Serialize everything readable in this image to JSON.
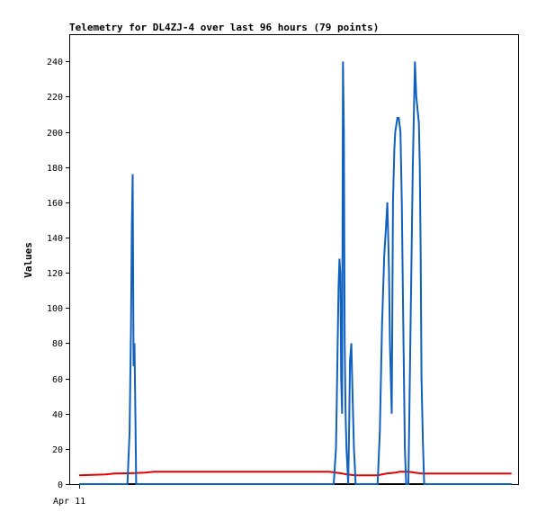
{
  "chart_data": {
    "type": "line",
    "title": "Telemetry for DL4ZJ-4 over last 96 hours (79 points)",
    "ylabel": "Values",
    "xlabel": "",
    "x_tick_labels": [
      "Apr 11"
    ],
    "ylim": [
      0,
      255
    ],
    "xlim": [
      0,
      1
    ],
    "yticks": [
      0,
      20,
      40,
      60,
      80,
      100,
      120,
      140,
      160,
      180,
      200,
      220,
      240
    ],
    "grid": false,
    "legend": "none",
    "series": [
      {
        "color": "#000000",
        "x": [
          0.0,
          0.985
        ],
        "y": [
          0,
          0
        ]
      },
      {
        "color": "#e00000",
        "x": [
          0.0,
          0.06,
          0.08,
          0.12,
          0.15,
          0.17,
          0.2,
          0.3,
          0.45,
          0.57,
          0.6,
          0.61,
          0.63,
          0.68,
          0.7,
          0.72,
          0.73,
          0.75,
          0.78,
          0.85,
          0.9,
          0.985
        ],
        "y": [
          5,
          5.5,
          6,
          6.2,
          6.5,
          7,
          7,
          7,
          7,
          7,
          6,
          5.5,
          5,
          5,
          6,
          6.5,
          7,
          7,
          6,
          6,
          6,
          6
        ]
      },
      {
        "color": "#1060c0",
        "x": [
          0.0,
          0.11,
          0.115,
          0.118,
          0.12,
          0.122,
          0.124,
          0.126,
          0.128,
          0.13,
          0.132,
          0.134,
          0.136,
          0.138,
          0.14,
          0.145,
          0.58,
          0.585,
          0.587,
          0.589,
          0.591,
          0.593,
          0.595,
          0.597,
          0.599,
          0.601,
          0.603,
          0.605,
          0.607,
          0.609,
          0.611,
          0.613,
          0.615,
          0.617,
          0.62,
          0.622,
          0.624,
          0.626,
          0.628,
          0.63,
          0.632,
          0.634,
          0.636,
          0.64,
          0.68,
          0.685,
          0.69,
          0.695,
          0.7,
          0.702,
          0.704,
          0.706,
          0.708,
          0.712,
          0.715,
          0.718,
          0.72,
          0.725,
          0.728,
          0.732,
          0.735,
          0.738,
          0.74,
          0.742,
          0.745,
          0.75,
          0.76,
          0.765,
          0.768,
          0.77,
          0.772,
          0.774,
          0.776,
          0.778,
          0.78,
          0.783,
          0.786,
          0.788,
          0.79,
          0.792,
          0.796,
          0.8,
          0.985
        ],
        "y": [
          0,
          0,
          30,
          88,
          147,
          176,
          67,
          80,
          40,
          0,
          0,
          0,
          0,
          0,
          0,
          0,
          0,
          20,
          50,
          80,
          112,
          128,
          120,
          60,
          40,
          240,
          200,
          80,
          40,
          20,
          10,
          0,
          30,
          70,
          80,
          60,
          40,
          20,
          10,
          0,
          0,
          0,
          0,
          0,
          0,
          30,
          90,
          130,
          150,
          160,
          140,
          120,
          80,
          40,
          160,
          190,
          200,
          208,
          208,
          200,
          160,
          100,
          60,
          20,
          0,
          0,
          180,
          240,
          220,
          215,
          210,
          205,
          180,
          130,
          60,
          25,
          0,
          0,
          0,
          0,
          0,
          0,
          0
        ]
      }
    ]
  }
}
